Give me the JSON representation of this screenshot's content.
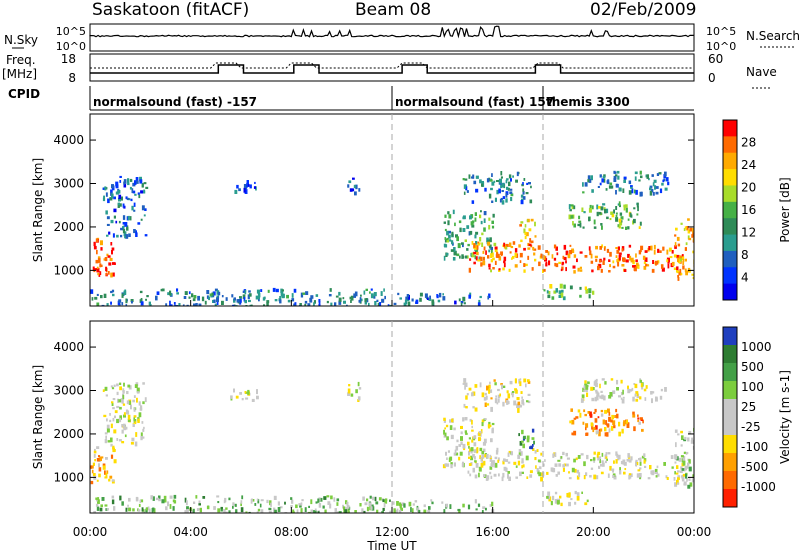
{
  "header": {
    "station": "Saskatoon (fitACF)",
    "beam": "Beam 08",
    "date": "02/Feb/2009"
  },
  "panels": {
    "nsky_label": "N.Sky",
    "nsky_ticks": [
      "10^5",
      "10^0"
    ],
    "nsearch_label": "N.Search",
    "nsearch_ticks": [
      "10^5",
      "10^0"
    ],
    "freq_label": "Freq.",
    "freq_unit": "[MHz]",
    "freq_ticks": [
      "18",
      "8"
    ],
    "nave_label": "Nave",
    "nave_ticks": [
      "60",
      "0"
    ],
    "cpid_label": "CPID",
    "cpid_segments": [
      {
        "start_h": 0,
        "label": "normalsound (fast) -157"
      },
      {
        "start_h": 12,
        "label": "normalsound (fast) 157"
      },
      {
        "start_h": 18,
        "label": "themis 3300"
      }
    ]
  },
  "chart_data": [
    {
      "type": "heatmap",
      "title": "",
      "xlabel": "Time UT",
      "ylabel": "Slant Range [km]",
      "x_ticks": [
        "00:00",
        "04:00",
        "08:00",
        "12:00",
        "16:00",
        "20:00",
        "00:00"
      ],
      "xlim": [
        0,
        24
      ],
      "y_ticks": [
        1000,
        2000,
        3000,
        4000
      ],
      "ylim": [
        180,
        4600
      ],
      "colorbar_label": "Power [dB]",
      "colorbar_ticks": [
        "28",
        "24",
        "20",
        "16",
        "12",
        "8",
        "4"
      ],
      "colorbar_colors": [
        "#ff0000",
        "#ff6a00",
        "#ffaa00",
        "#ffdd00",
        "#a8dc2a",
        "#45b045",
        "#2e8b57",
        "#2a9d8f",
        "#1f5fbf",
        "#0033ff",
        "#0000ee"
      ],
      "regions": [
        {
          "x": [
            0.0,
            1.0
          ],
          "y": [
            900,
            1800
          ],
          "level": 0.9
        },
        {
          "x": [
            0.5,
            2.2
          ],
          "y": [
            1800,
            3200
          ],
          "level": 0.25
        },
        {
          "x": [
            5.5,
            6.6
          ],
          "y": [
            2800,
            3100
          ],
          "level": 0.2
        },
        {
          "x": [
            10.2,
            10.7
          ],
          "y": [
            2800,
            3200
          ],
          "level": 0.15
        },
        {
          "x": [
            0.0,
            12.0
          ],
          "y": [
            200,
            600
          ],
          "level": 0.3
        },
        {
          "x": [
            12.0,
            16.0
          ],
          "y": [
            250,
            500
          ],
          "level": 0.25
        },
        {
          "x": [
            14.0,
            16.0
          ],
          "y": [
            1300,
            2400
          ],
          "level": 0.4
        },
        {
          "x": [
            15.0,
            18.0
          ],
          "y": [
            1000,
            1700
          ],
          "level": 0.8
        },
        {
          "x": [
            14.8,
            17.5
          ],
          "y": [
            2600,
            3300
          ],
          "level": 0.3
        },
        {
          "x": [
            17.0,
            17.7
          ],
          "y": [
            1700,
            2200
          ],
          "level": 0.7
        },
        {
          "x": [
            18.0,
            23.6
          ],
          "y": [
            1000,
            1600
          ],
          "level": 0.85
        },
        {
          "x": [
            19.0,
            22.0
          ],
          "y": [
            2000,
            2600
          ],
          "level": 0.5
        },
        {
          "x": [
            23.2,
            24.0
          ],
          "y": [
            800,
            2200
          ],
          "level": 0.75
        },
        {
          "x": [
            19.5,
            23.0
          ],
          "y": [
            2800,
            3300
          ],
          "level": 0.3
        },
        {
          "x": [
            18.0,
            20.0
          ],
          "y": [
            400,
            700
          ],
          "level": 0.5
        }
      ]
    },
    {
      "type": "heatmap",
      "title": "",
      "xlabel": "Time UT",
      "ylabel": "Slant Range [km]",
      "x_ticks": [
        "00:00",
        "04:00",
        "08:00",
        "12:00",
        "16:00",
        "20:00",
        "00:00"
      ],
      "xlim": [
        0,
        24
      ],
      "y_ticks": [
        1000,
        2000,
        3000,
        4000
      ],
      "ylim": [
        180,
        4600
      ],
      "colorbar_label": "Velocity [m s-1]",
      "colorbar_ticks": [
        "1000",
        "500",
        "100",
        "25",
        "-25",
        "-100",
        "-500",
        "-1000"
      ],
      "colorbar_colors": [
        "#1f3fbf",
        "#2e7d32",
        "#43a047",
        "#7ccd3e",
        "#c8c8c8",
        "#c8c8c8",
        "#ffdd00",
        "#ffa000",
        "#ff6a00",
        "#ff2000"
      ],
      "regions": [
        {
          "x": [
            0.0,
            1.0
          ],
          "y": [
            900,
            1800
          ],
          "level": 0.3
        },
        {
          "x": [
            0.5,
            2.2
          ],
          "y": [
            1800,
            3200
          ],
          "level": 0.5
        },
        {
          "x": [
            5.5,
            6.6
          ],
          "y": [
            2800,
            3100
          ],
          "level": 0.5
        },
        {
          "x": [
            10.2,
            10.7
          ],
          "y": [
            2800,
            3200
          ],
          "level": 0.5
        },
        {
          "x": [
            0.0,
            12.0
          ],
          "y": [
            200,
            600
          ],
          "level": 0.65
        },
        {
          "x": [
            12.0,
            16.0
          ],
          "y": [
            250,
            500
          ],
          "level": 0.6
        },
        {
          "x": [
            14.0,
            16.0
          ],
          "y": [
            1300,
            2400
          ],
          "level": 0.5
        },
        {
          "x": [
            15.0,
            18.0
          ],
          "y": [
            1000,
            1700
          ],
          "level": 0.5
        },
        {
          "x": [
            14.8,
            17.5
          ],
          "y": [
            2600,
            3300
          ],
          "level": 0.45
        },
        {
          "x": [
            17.0,
            17.7
          ],
          "y": [
            1700,
            2200
          ],
          "level": 0.8
        },
        {
          "x": [
            18.0,
            23.6
          ],
          "y": [
            1000,
            1600
          ],
          "level": 0.5
        },
        {
          "x": [
            19.0,
            22.0
          ],
          "y": [
            2000,
            2600
          ],
          "level": 0.25
        },
        {
          "x": [
            23.2,
            24.0
          ],
          "y": [
            800,
            2200
          ],
          "level": 0.55
        },
        {
          "x": [
            19.5,
            23.0
          ],
          "y": [
            2800,
            3300
          ],
          "level": 0.5
        },
        {
          "x": [
            18.0,
            20.0
          ],
          "y": [
            400,
            700
          ],
          "level": 0.5
        }
      ]
    }
  ]
}
